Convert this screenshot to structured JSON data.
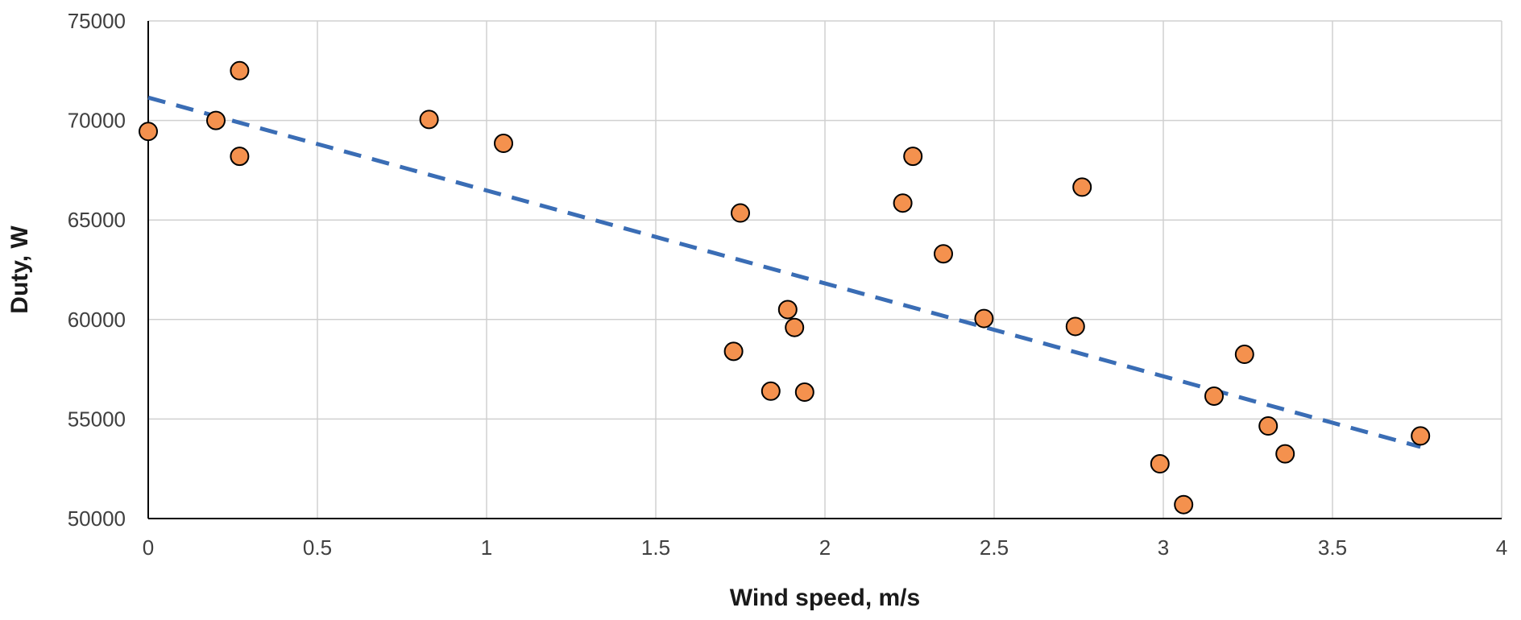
{
  "chart_data": {
    "type": "scatter",
    "title": "",
    "xlabel": "Wind speed, m/s",
    "ylabel": "Duty, W",
    "xlim": [
      0,
      4
    ],
    "ylim": [
      50000,
      75000
    ],
    "xticks": [
      0,
      0.5,
      1,
      1.5,
      2,
      2.5,
      3,
      3.5,
      4
    ],
    "yticks": [
      50000,
      55000,
      60000,
      65000,
      70000,
      75000
    ],
    "grid": true,
    "legend": "none",
    "series": [
      {
        "marker_color": "#F4914E",
        "marker_edge": "#000000",
        "points": [
          [
            0.0,
            69450
          ],
          [
            0.2,
            70000
          ],
          [
            0.27,
            72500
          ],
          [
            0.27,
            68200
          ],
          [
            0.83,
            70050
          ],
          [
            1.05,
            68850
          ],
          [
            1.73,
            58400
          ],
          [
            1.75,
            65350
          ],
          [
            1.84,
            56400
          ],
          [
            1.89,
            60500
          ],
          [
            1.91,
            59600
          ],
          [
            1.94,
            56350
          ],
          [
            2.23,
            65850
          ],
          [
            2.26,
            68200
          ],
          [
            2.35,
            63300
          ],
          [
            2.47,
            60050
          ],
          [
            2.74,
            59650
          ],
          [
            2.76,
            66650
          ],
          [
            2.99,
            52750
          ],
          [
            3.06,
            50700
          ],
          [
            3.15,
            56150
          ],
          [
            3.24,
            58250
          ],
          [
            3.31,
            54650
          ],
          [
            3.36,
            53250
          ],
          [
            3.76,
            54150
          ]
        ]
      }
    ],
    "trendline": {
      "type": "linear",
      "style": "dashed",
      "color": "#3A6DB5",
      "x_start": 0.0,
      "y_start": 71150,
      "x_end": 3.76,
      "y_end": 53600
    }
  }
}
